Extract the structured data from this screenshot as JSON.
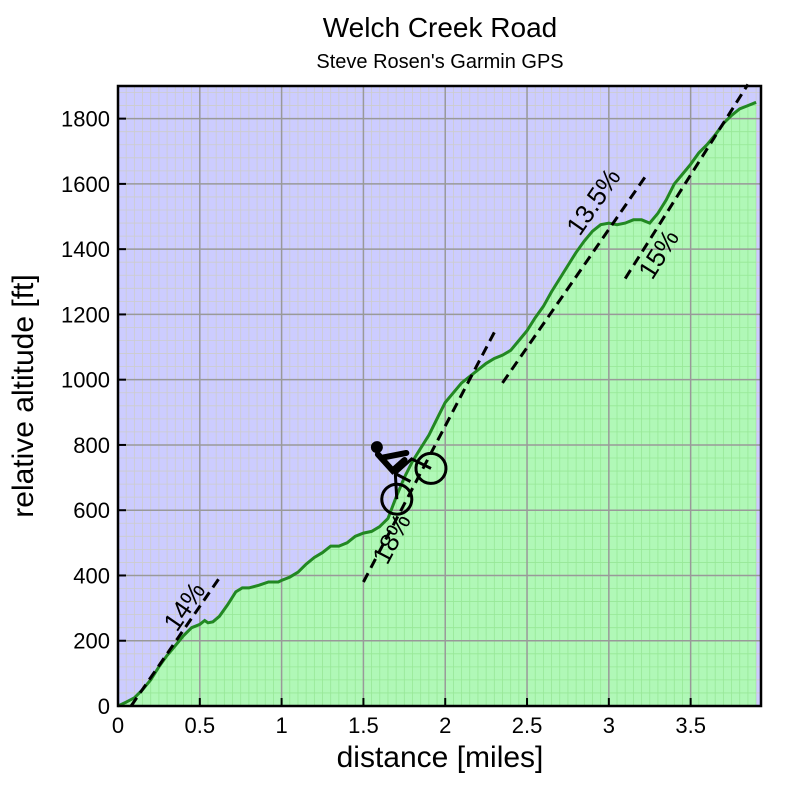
{
  "chart_data": {
    "type": "area",
    "title": "Welch Creek Road",
    "subtitle": "Steve Rosen's Garmin GPS",
    "xlabel": "distance [miles]",
    "ylabel": "relative altitude [ft]",
    "xlim": [
      0,
      3.93
    ],
    "ylim": [
      0,
      1900
    ],
    "x_ticks": [
      0,
      0.5,
      1,
      1.5,
      2,
      2.5,
      3,
      3.5
    ],
    "x_tick_labels": [
      "0",
      "0.5",
      "1",
      "1.5",
      "2",
      "2.5",
      "3",
      "3.5"
    ],
    "y_ticks": [
      0,
      200,
      400,
      600,
      800,
      1000,
      1200,
      1400,
      1600,
      1800
    ],
    "y_tick_labels": [
      "0",
      "200",
      "400",
      "600",
      "800",
      "1000",
      "1200",
      "1400",
      "1600",
      "1800"
    ],
    "grid": true,
    "colors": {
      "sky": "#ccccff",
      "fill": "#aaffaa",
      "line": "#228822",
      "grid_major": "#999999",
      "grid_minor": "#cccccc"
    },
    "series": [
      {
        "x": [
          0,
          0.05,
          0.1,
          0.15,
          0.2,
          0.25,
          0.3,
          0.35,
          0.4,
          0.45,
          0.5,
          0.53,
          0.55,
          0.58,
          0.62,
          0.67,
          0.72,
          0.76,
          0.8,
          0.86,
          0.92,
          0.98,
          1.0,
          1.05,
          1.1,
          1.15,
          1.2,
          1.25,
          1.3,
          1.35,
          1.4,
          1.45,
          1.5,
          1.55,
          1.6,
          1.65,
          1.7,
          1.75,
          1.8,
          1.85,
          1.9,
          1.95,
          2.0,
          2.05,
          2.1,
          2.15,
          2.2,
          2.25,
          2.3,
          2.35,
          2.4,
          2.45,
          2.5,
          2.55,
          2.6,
          2.65,
          2.7,
          2.75,
          2.8,
          2.85,
          2.9,
          2.95,
          3.0,
          3.05,
          3.1,
          3.15,
          3.2,
          3.25,
          3.3,
          3.35,
          3.4,
          3.45,
          3.5,
          3.55,
          3.6,
          3.65,
          3.7,
          3.75,
          3.8,
          3.85,
          3.9
        ],
        "y": [
          0,
          12,
          25,
          50,
          80,
          120,
          155,
          185,
          215,
          240,
          250,
          262,
          255,
          258,
          275,
          310,
          350,
          362,
          362,
          370,
          380,
          380,
          385,
          395,
          410,
          435,
          455,
          470,
          490,
          490,
          500,
          520,
          530,
          535,
          550,
          575,
          640,
          700,
          750,
          790,
          830,
          880,
          930,
          960,
          990,
          1010,
          1030,
          1050,
          1065,
          1075,
          1090,
          1120,
          1150,
          1190,
          1225,
          1270,
          1310,
          1350,
          1390,
          1425,
          1455,
          1475,
          1480,
          1475,
          1480,
          1490,
          1490,
          1480,
          1510,
          1550,
          1600,
          1630,
          1660,
          1695,
          1720,
          1750,
          1785,
          1810,
          1830,
          1840,
          1850
        ]
      }
    ],
    "annotations": [
      {
        "text": "14%",
        "x": 0.45,
        "y": 290,
        "line": {
          "x1": 0.08,
          "y1": 0,
          "x2": 0.63,
          "y2": 400
        }
      },
      {
        "text": "18%",
        "x": 1.72,
        "y": 500,
        "line": {
          "x1": 1.5,
          "y1": 380,
          "x2": 2.3,
          "y2": 1145
        }
      },
      {
        "text": "13.5%",
        "x": 2.95,
        "y": 1530,
        "line": {
          "x1": 2.35,
          "y1": 990,
          "x2": 3.22,
          "y2": 1620
        }
      },
      {
        "text": "15%",
        "x": 3.35,
        "y": 1370,
        "line": {
          "x1": 3.1,
          "y1": 1310,
          "x2": 3.85,
          "y2": 1905
        }
      }
    ],
    "icons": [
      {
        "name": "cyclist-icon",
        "x": 1.73,
        "y": 720
      }
    ]
  }
}
